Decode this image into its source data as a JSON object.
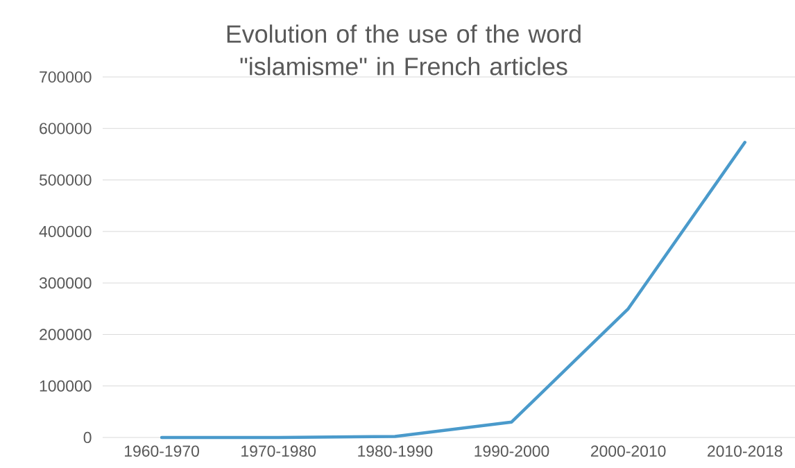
{
  "chart_data": {
    "type": "line",
    "title": "Evolution of the use of the word \"islamisme\" in French articles",
    "categories": [
      "1960-1970",
      "1970-1980",
      "1980-1990",
      "1990-2000",
      "2000-2010",
      "2010-2018"
    ],
    "series": [
      {
        "color": "#4a9acb",
        "values": [
          0,
          0,
          2000,
          30000,
          250000,
          573000
        ]
      }
    ],
    "ylim": [
      0,
      700000
    ],
    "yticks": [
      0,
      100000,
      200000,
      300000,
      400000,
      500000,
      600000,
      700000
    ],
    "grid": "y",
    "legend": false,
    "marker": "none",
    "line_style": "solid"
  }
}
